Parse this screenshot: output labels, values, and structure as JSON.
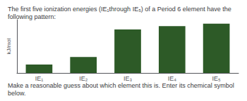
{
  "chart_data": {
    "type": "bar",
    "title": "The first five ionization energies (IE₁through IE₅) of a Period 6 element have the following pattern:",
    "subtitle": "Make a reasonable guess about which element this is. Enter its chemical symbol below.",
    "ylabel": "kJ/mol",
    "categories": [
      "IE₁",
      "IE₂",
      "IE₃",
      "IE₄",
      "IE₅"
    ],
    "values": [
      1.0,
      1.9,
      5.2,
      5.6,
      5.9
    ],
    "color": "#2d5a27",
    "ylim": [
      0,
      6.372
    ],
    "grid": false,
    "tick_labels": "x"
  }
}
